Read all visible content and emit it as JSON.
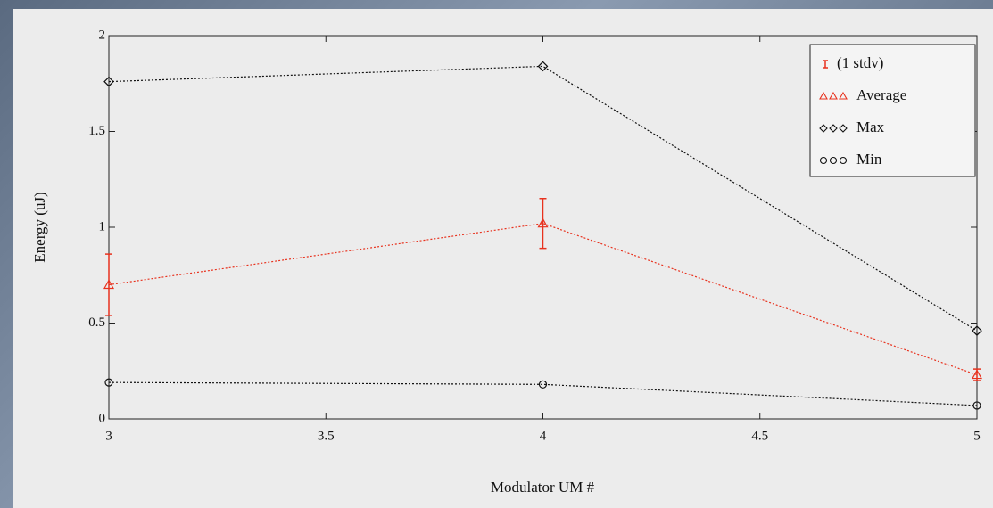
{
  "chart_data": {
    "type": "line",
    "x_label": "Modulator UM #",
    "y_label": "Energy (uJ)",
    "x": [
      3,
      4,
      5
    ],
    "series": [
      {
        "name": "Average",
        "color": "#e8321e",
        "marker": "triangle",
        "values": [
          0.7,
          1.02,
          0.23
        ],
        "errors": [
          0.16,
          0.13,
          0.03
        ],
        "error_name": "(1 stdv)"
      },
      {
        "name": "Max",
        "color": "#111111",
        "marker": "diamond",
        "values": [
          1.76,
          1.84,
          0.46
        ]
      },
      {
        "name": "Min",
        "color": "#111111",
        "marker": "circle",
        "values": [
          0.19,
          0.18,
          0.07
        ]
      }
    ],
    "xlim": [
      3,
      5
    ],
    "xticks": [
      3,
      3.5,
      4,
      4.5,
      5
    ],
    "ylim": [
      0,
      2
    ],
    "yticks": [
      0,
      0.5,
      1,
      1.5,
      2
    ],
    "legend": "upper-right"
  }
}
